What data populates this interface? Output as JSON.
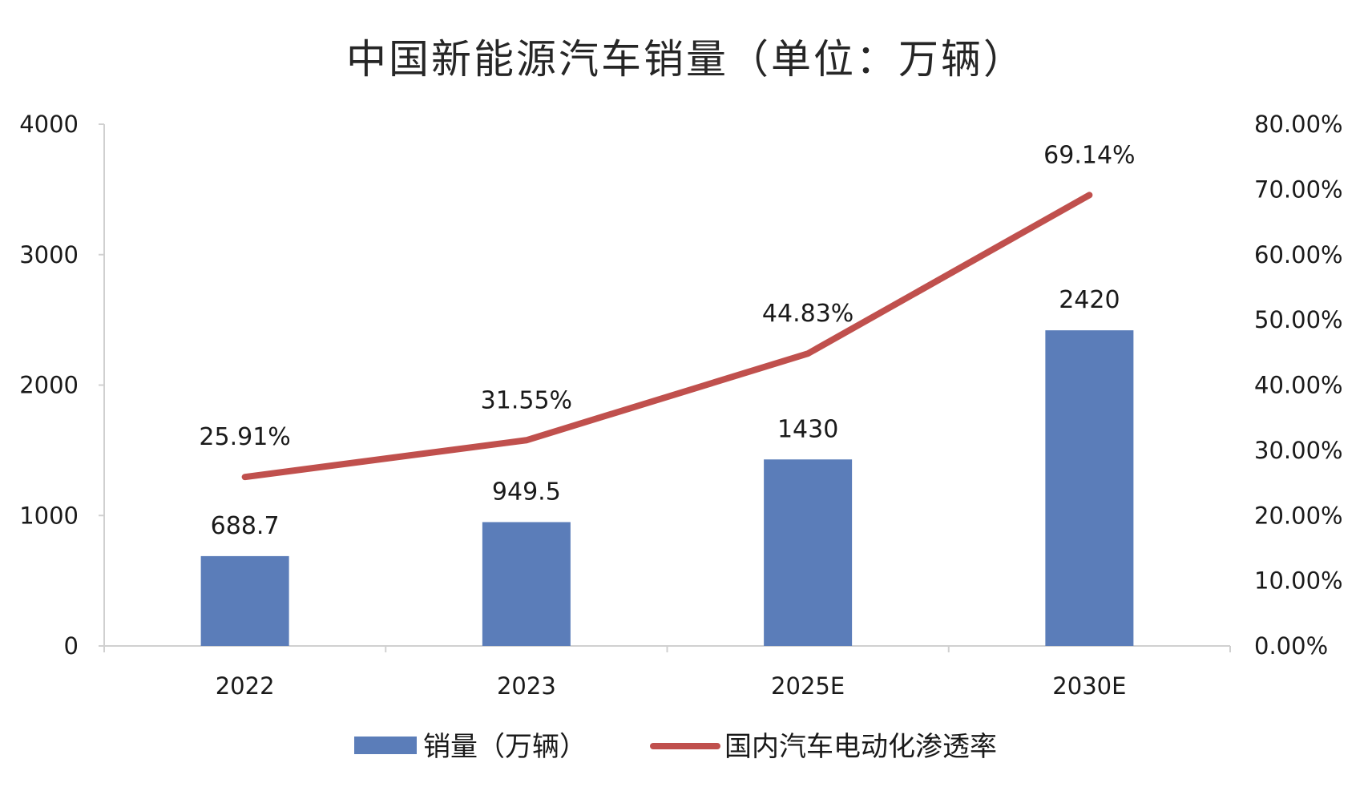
{
  "chart_data": {
    "type": "bar",
    "title": "中国新能源汽车销量（单位：万辆）",
    "categories": [
      "2022",
      "2023",
      "2025E",
      "2030E"
    ],
    "series": [
      {
        "name": "销量（万辆）",
        "type": "bar",
        "axis": "left",
        "color": "#5B7DB9",
        "values": [
          688.7,
          949.5,
          1430,
          2420
        ],
        "labels": [
          "688.7",
          "949.5",
          "1430",
          "2420"
        ]
      },
      {
        "name": "国内汽车电动化渗透率",
        "type": "line",
        "axis": "right",
        "color": "#C0504D",
        "values": [
          25.91,
          31.55,
          44.83,
          69.14
        ],
        "labels": [
          "25.91%",
          "31.55%",
          "44.83%",
          "69.14%"
        ]
      }
    ],
    "y_left": {
      "range": [
        0,
        4000
      ],
      "ticks": [
        0,
        1000,
        2000,
        3000,
        4000
      ],
      "tick_labels": [
        "0",
        "1000",
        "2000",
        "3000",
        "4000"
      ]
    },
    "y_right": {
      "range": [
        0,
        80
      ],
      "ticks": [
        0,
        10,
        20,
        30,
        40,
        50,
        60,
        70,
        80
      ],
      "tick_labels": [
        "0.00%",
        "10.00%",
        "20.00%",
        "30.00%",
        "40.00%",
        "50.00%",
        "60.00%",
        "70.00%",
        "80.00%"
      ]
    },
    "grid": false,
    "legend_position": "bottom"
  }
}
